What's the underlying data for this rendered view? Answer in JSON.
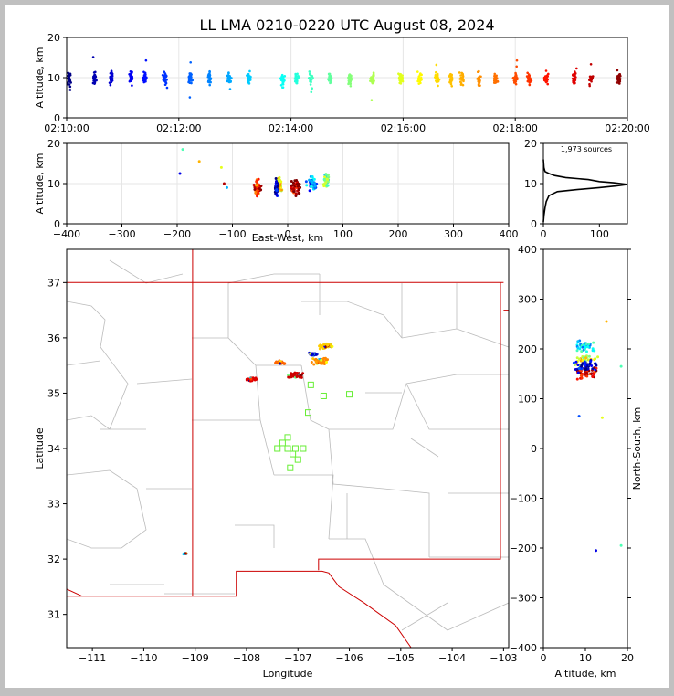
{
  "title": "LL LMA 0210-0220 UTC August 08, 2024",
  "colors": {
    "frame": "#c0c0c0",
    "background": "#ffffff",
    "state_border": "#cc0000",
    "county_border": "#bbbbbb",
    "station_marker": "#66ee33"
  },
  "chart_data": [
    {
      "name": "altitude-time",
      "type": "scatter",
      "ylabel": "Altitude, km",
      "xlim_minutes": [
        0,
        10
      ],
      "ylim": [
        0,
        20
      ],
      "xticks": [
        "02:10:00",
        "02:12:00",
        "02:14:00",
        "02:16:00",
        "02:18:00",
        "02:20:00"
      ],
      "yticks": [
        "0",
        "10",
        "20"
      ],
      "colormap": "jet (time)",
      "bursts_minutes": [
        0.05,
        0.5,
        0.8,
        1.15,
        1.4,
        1.75,
        2.2,
        2.55,
        2.9,
        3.25,
        3.85,
        4.1,
        4.35,
        4.7,
        5.05,
        5.45,
        5.95,
        6.3,
        6.6,
        6.85,
        7.05,
        7.35,
        7.65,
        8.0,
        8.25,
        8.55,
        9.05,
        9.35,
        9.85
      ]
    },
    {
      "name": "altitude-east-west",
      "type": "scatter",
      "xlabel": "East-West, km",
      "ylabel": "Altitude, km",
      "xlim": [
        -400,
        400
      ],
      "ylim": [
        0,
        20
      ],
      "xticks": [
        "−400",
        "−300",
        "−200",
        "−100",
        "0",
        "100",
        "200",
        "300",
        "400"
      ],
      "yticks": [
        "0",
        "10",
        "20"
      ]
    },
    {
      "name": "altitude-histogram",
      "type": "line",
      "annotation": "1,973 sources",
      "xlim": [
        0,
        150
      ],
      "ylim": [
        0,
        20
      ],
      "xticks": [
        "0",
        "100"
      ],
      "yticks": [
        "0",
        "10",
        "20"
      ],
      "profile": [
        [
          0,
          0.4
        ],
        [
          1,
          2
        ],
        [
          3,
          4
        ],
        [
          5,
          5.5
        ],
        [
          10,
          7
        ],
        [
          25,
          8
        ],
        [
          60,
          8.5
        ],
        [
          100,
          9
        ],
        [
          130,
          9.4
        ],
        [
          150,
          9.8
        ],
        [
          125,
          10.2
        ],
        [
          100,
          10.5
        ],
        [
          80,
          11
        ],
        [
          40,
          11.5
        ],
        [
          20,
          12
        ],
        [
          10,
          12.5
        ],
        [
          3,
          13
        ],
        [
          1,
          14
        ],
        [
          0,
          16
        ]
      ]
    },
    {
      "name": "map",
      "type": "scatter",
      "xlabel": "Longitude",
      "ylabel": "Latitude",
      "xlim": [
        -111.5,
        -102.9
      ],
      "ylim": [
        30.4,
        37.6
      ],
      "xticks": [
        "−111",
        "−110",
        "−109",
        "−108",
        "−107",
        "−106",
        "−105",
        "−104",
        "−103"
      ],
      "yticks": [
        "31",
        "32",
        "33",
        "34",
        "35",
        "36",
        "37"
      ],
      "stations": [
        [
          -107.2,
          34.2
        ],
        [
          -107.3,
          34.1
        ],
        [
          -107.4,
          34.0
        ],
        [
          -107.2,
          34.0
        ],
        [
          -107.05,
          34.0
        ],
        [
          -106.9,
          34.0
        ],
        [
          -107.1,
          33.9
        ],
        [
          -107.0,
          33.8
        ],
        [
          -107.15,
          33.65
        ],
        [
          -106.8,
          34.65
        ],
        [
          -106.75,
          35.15
        ],
        [
          -106.5,
          34.95
        ],
        [
          -106.0,
          34.98
        ]
      ],
      "clusters": [
        {
          "lon": -107.05,
          "lat": 35.32,
          "size": 0.18,
          "color": "#cc0000"
        },
        {
          "lon": -106.55,
          "lat": 35.57,
          "size": 0.2,
          "color": "#ff8800"
        },
        {
          "lon": -106.45,
          "lat": 35.85,
          "size": 0.15,
          "color": "#ffcc00"
        },
        {
          "lon": -107.9,
          "lat": 35.25,
          "size": 0.12,
          "color": "#dd0000"
        },
        {
          "lon": -107.35,
          "lat": 35.55,
          "size": 0.12,
          "color": "#ff6600"
        },
        {
          "lon": -106.7,
          "lat": 35.7,
          "size": 0.1,
          "color": "#0000cc"
        },
        {
          "lon": -109.2,
          "lat": 32.1,
          "size": 0.05,
          "color": "#00ccff"
        }
      ]
    },
    {
      "name": "north-south-altitude",
      "type": "scatter",
      "xlabel": "Altitude, km",
      "ylabel": "North-South, km",
      "xlim": [
        0,
        20
      ],
      "ylim": [
        -400,
        400
      ],
      "xticks": [
        "0",
        "10",
        "20"
      ],
      "yticks": [
        "400",
        "300",
        "200",
        "100",
        "0",
        "−100",
        "−200",
        "−300",
        "−400"
      ]
    }
  ]
}
